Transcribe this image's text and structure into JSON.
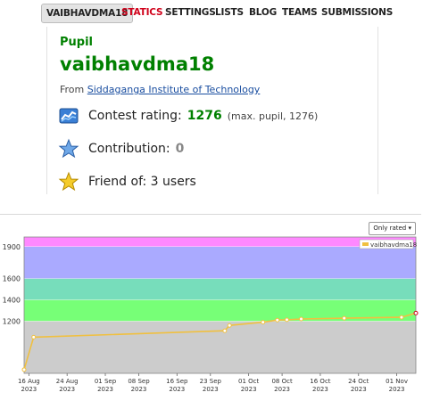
{
  "nav": {
    "handle": "VAIBHAVDMA18",
    "items": [
      "STATICS",
      "SETTINGS",
      "LISTS",
      "BLOG",
      "TEAMS",
      "SUBMISSIONS"
    ]
  },
  "profile": {
    "rank": "Pupil",
    "handle": "vaibhavdma18",
    "from_label": "From",
    "organization": "Siddaganga Institute of Technology",
    "rating_label": "Contest rating:",
    "rating": "1276",
    "rating_max": "(max. pupil, 1276)",
    "contribution_label": "Contribution:",
    "contribution": "0",
    "friend_label": "Friend of: 3 users"
  },
  "chart_filter": "Only rated ▾",
  "colors": {
    "pupil_green": "#008000",
    "link_blue": "#1a4ea0",
    "active_red": "#d0021b",
    "line": "#f0c040"
  },
  "chart_data": {
    "type": "line",
    "title": "",
    "xlabel": "",
    "ylabel": "",
    "legend": "top-right",
    "x_ticks": [
      [
        "16 Aug",
        "2023"
      ],
      [
        "24 Aug",
        "2023"
      ],
      [
        "01 Sep",
        "2023"
      ],
      [
        "08 Sep",
        "2023"
      ],
      [
        "16 Sep",
        "2023"
      ],
      [
        "23 Sep",
        "2023"
      ],
      [
        "01 Oct",
        "2023"
      ],
      [
        "08 Oct",
        "2023"
      ],
      [
        "16 Oct",
        "2023"
      ],
      [
        "24 Oct",
        "2023"
      ],
      [
        "01 Nov",
        "2023"
      ]
    ],
    "x_tick_dates": [
      "2023-08-16",
      "2023-08-24",
      "2023-09-01",
      "2023-09-08",
      "2023-09-16",
      "2023-09-23",
      "2023-10-01",
      "2023-10-08",
      "2023-10-16",
      "2023-10-24",
      "2023-11-01"
    ],
    "y_ticks": [
      1200,
      1400,
      1600,
      1900
    ],
    "xlim": [
      "2023-08-15",
      "2023-11-05"
    ],
    "ylim": [
      710,
      1990
    ],
    "bands": [
      {
        "from": 710,
        "to": 1200,
        "color": "#cccccc"
      },
      {
        "from": 1200,
        "to": 1400,
        "color": "#77ff77"
      },
      {
        "from": 1400,
        "to": 1600,
        "color": "#77ddbb"
      },
      {
        "from": 1600,
        "to": 1900,
        "color": "#aaaaff"
      },
      {
        "from": 1900,
        "to": 1990,
        "color": "#ff88ff"
      }
    ],
    "series": [
      {
        "name": "vaibhavdma18",
        "color": "#f0c040",
        "points": [
          [
            "2023-08-15",
            745
          ],
          [
            "2023-08-17",
            1050
          ],
          [
            "2023-09-26",
            1110
          ],
          [
            "2023-09-27",
            1160
          ],
          [
            "2023-10-04",
            1190
          ],
          [
            "2023-10-07",
            1210
          ],
          [
            "2023-10-09",
            1213
          ],
          [
            "2023-10-12",
            1220
          ],
          [
            "2023-10-21",
            1228
          ],
          [
            "2023-11-02",
            1236
          ],
          [
            "2023-11-05",
            1276
          ]
        ]
      }
    ]
  }
}
